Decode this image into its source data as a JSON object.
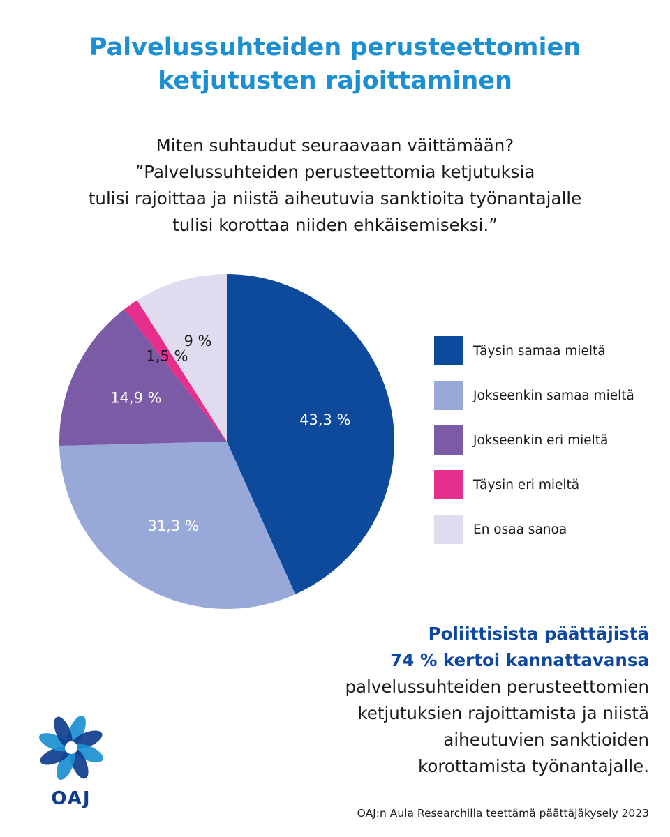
{
  "header": {
    "title_lines": [
      "Palvelussuhteiden perusteettomien",
      "ketjutusten rajoittaminen"
    ]
  },
  "question_lines": [
    "Miten suhtaudut seuraavaan väittämään?",
    "”Palvelussuhteiden perusteettomia ketjutuksia",
    "tulisi rajoittaa ja niistä aiheutuvia sanktioita työnantajalle",
    "tulisi korottaa niiden ehkäisemiseksi.”"
  ],
  "chart_data": {
    "type": "pie",
    "title": "",
    "start_angle_deg": 0,
    "direction": "clockwise",
    "legend_position": "right",
    "slices": [
      {
        "name": "Täysin samaa mieltä",
        "value": 43.3,
        "label": "43,3 %",
        "color": "#0d4a9b",
        "label_color": "#ffffff"
      },
      {
        "name": "Jokseenkin samaa mieltä",
        "value": 31.3,
        "label": "31,3 %",
        "color": "#98a9d9",
        "label_color": "#ffffff"
      },
      {
        "name": "Jokseenkin eri mieltä",
        "value": 14.9,
        "label": "14,9 %",
        "color": "#7c5ba6",
        "label_color": "#ffffff"
      },
      {
        "name": "Täysin eri mieltä",
        "value": 1.5,
        "label": "1,5 %",
        "color": "#e62f8c",
        "label_color": "#1a1a1a"
      },
      {
        "name": "En osaa sanoa",
        "value": 9.0,
        "label": "9 %",
        "color": "#e1dbef",
        "label_color": "#1a1a1a"
      }
    ]
  },
  "note": {
    "strong_lines": [
      "Poliittisista päättäjistä",
      "74 % kertoi kannattavansa"
    ],
    "body_lines": [
      "palvelussuhteiden perusteettomien",
      "ketjutuksien rajoittamista ja niistä",
      "aiheutuvien sanktioiden",
      "korottamista työnantajalle."
    ]
  },
  "logo": {
    "text": "OAJ",
    "colors": [
      "#1b8fd2",
      "#0f3d8c"
    ]
  },
  "source": "OAJ:n Aula Researchilla teettämä päättäjäkysely 2023"
}
